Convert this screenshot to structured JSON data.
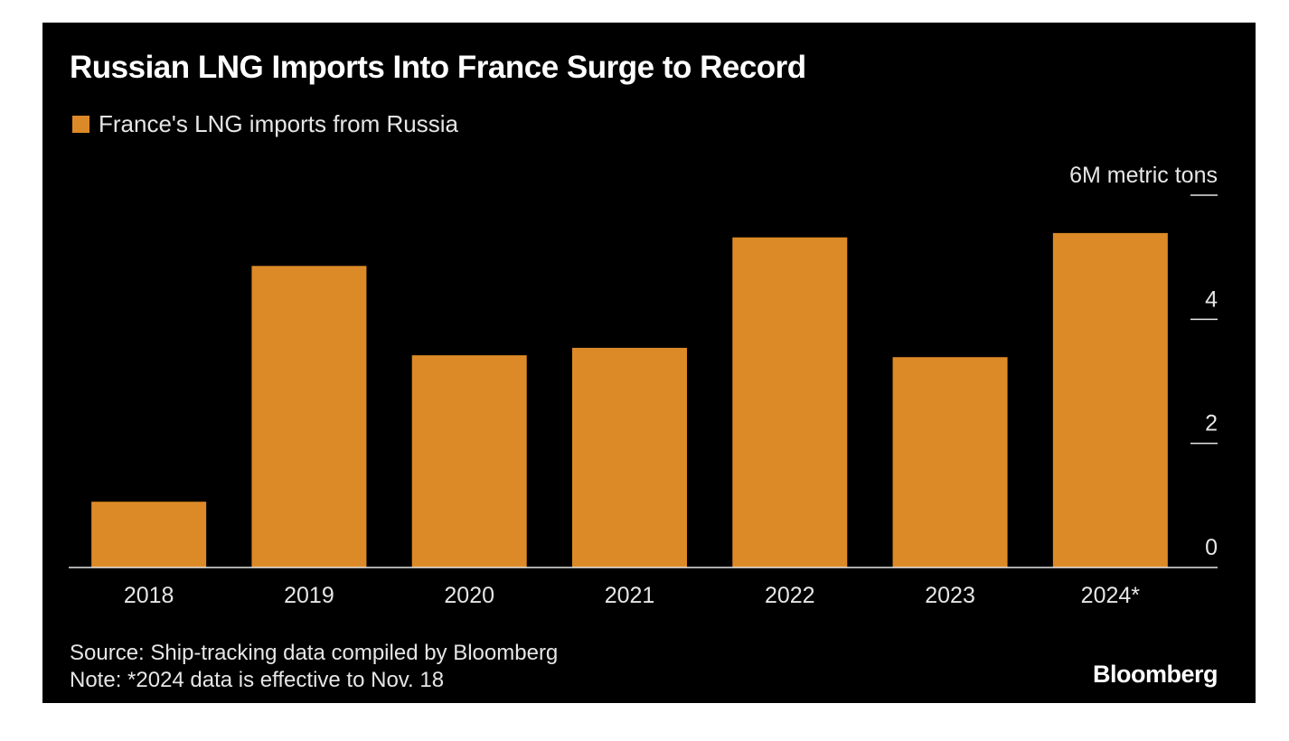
{
  "title": "Russian LNG Imports Into France Surge to Record",
  "legend": {
    "label": "France's LNG imports from Russia"
  },
  "source_note": "Source: Ship-tracking data compiled by Bloomberg",
  "footnote": "Note: *2024 data is effective to Nov. 18",
  "brand": "Bloomberg",
  "colors": {
    "background": "#000000",
    "bar": "#dc8a27",
    "text": "#e6e6e6",
    "axis": "#e6e6e6"
  },
  "chart_data": {
    "type": "bar",
    "title": "Russian LNG Imports Into France Surge to Record",
    "categories": [
      "2018",
      "2019",
      "2020",
      "2021",
      "2022",
      "2023",
      "2024*"
    ],
    "series": [
      {
        "name": "France's LNG imports from Russia",
        "values": [
          1.06,
          4.86,
          3.42,
          3.54,
          5.32,
          3.39,
          5.39
        ]
      }
    ],
    "ylabel": "M metric tons",
    "ylim": [
      0,
      6
    ],
    "yticks": [
      0,
      2,
      4,
      6
    ],
    "ytick_labels": [
      "0",
      "2",
      "4",
      "6M metric tons"
    ],
    "y_axis_side": "right",
    "grid": false,
    "legend_position": "top-left"
  }
}
